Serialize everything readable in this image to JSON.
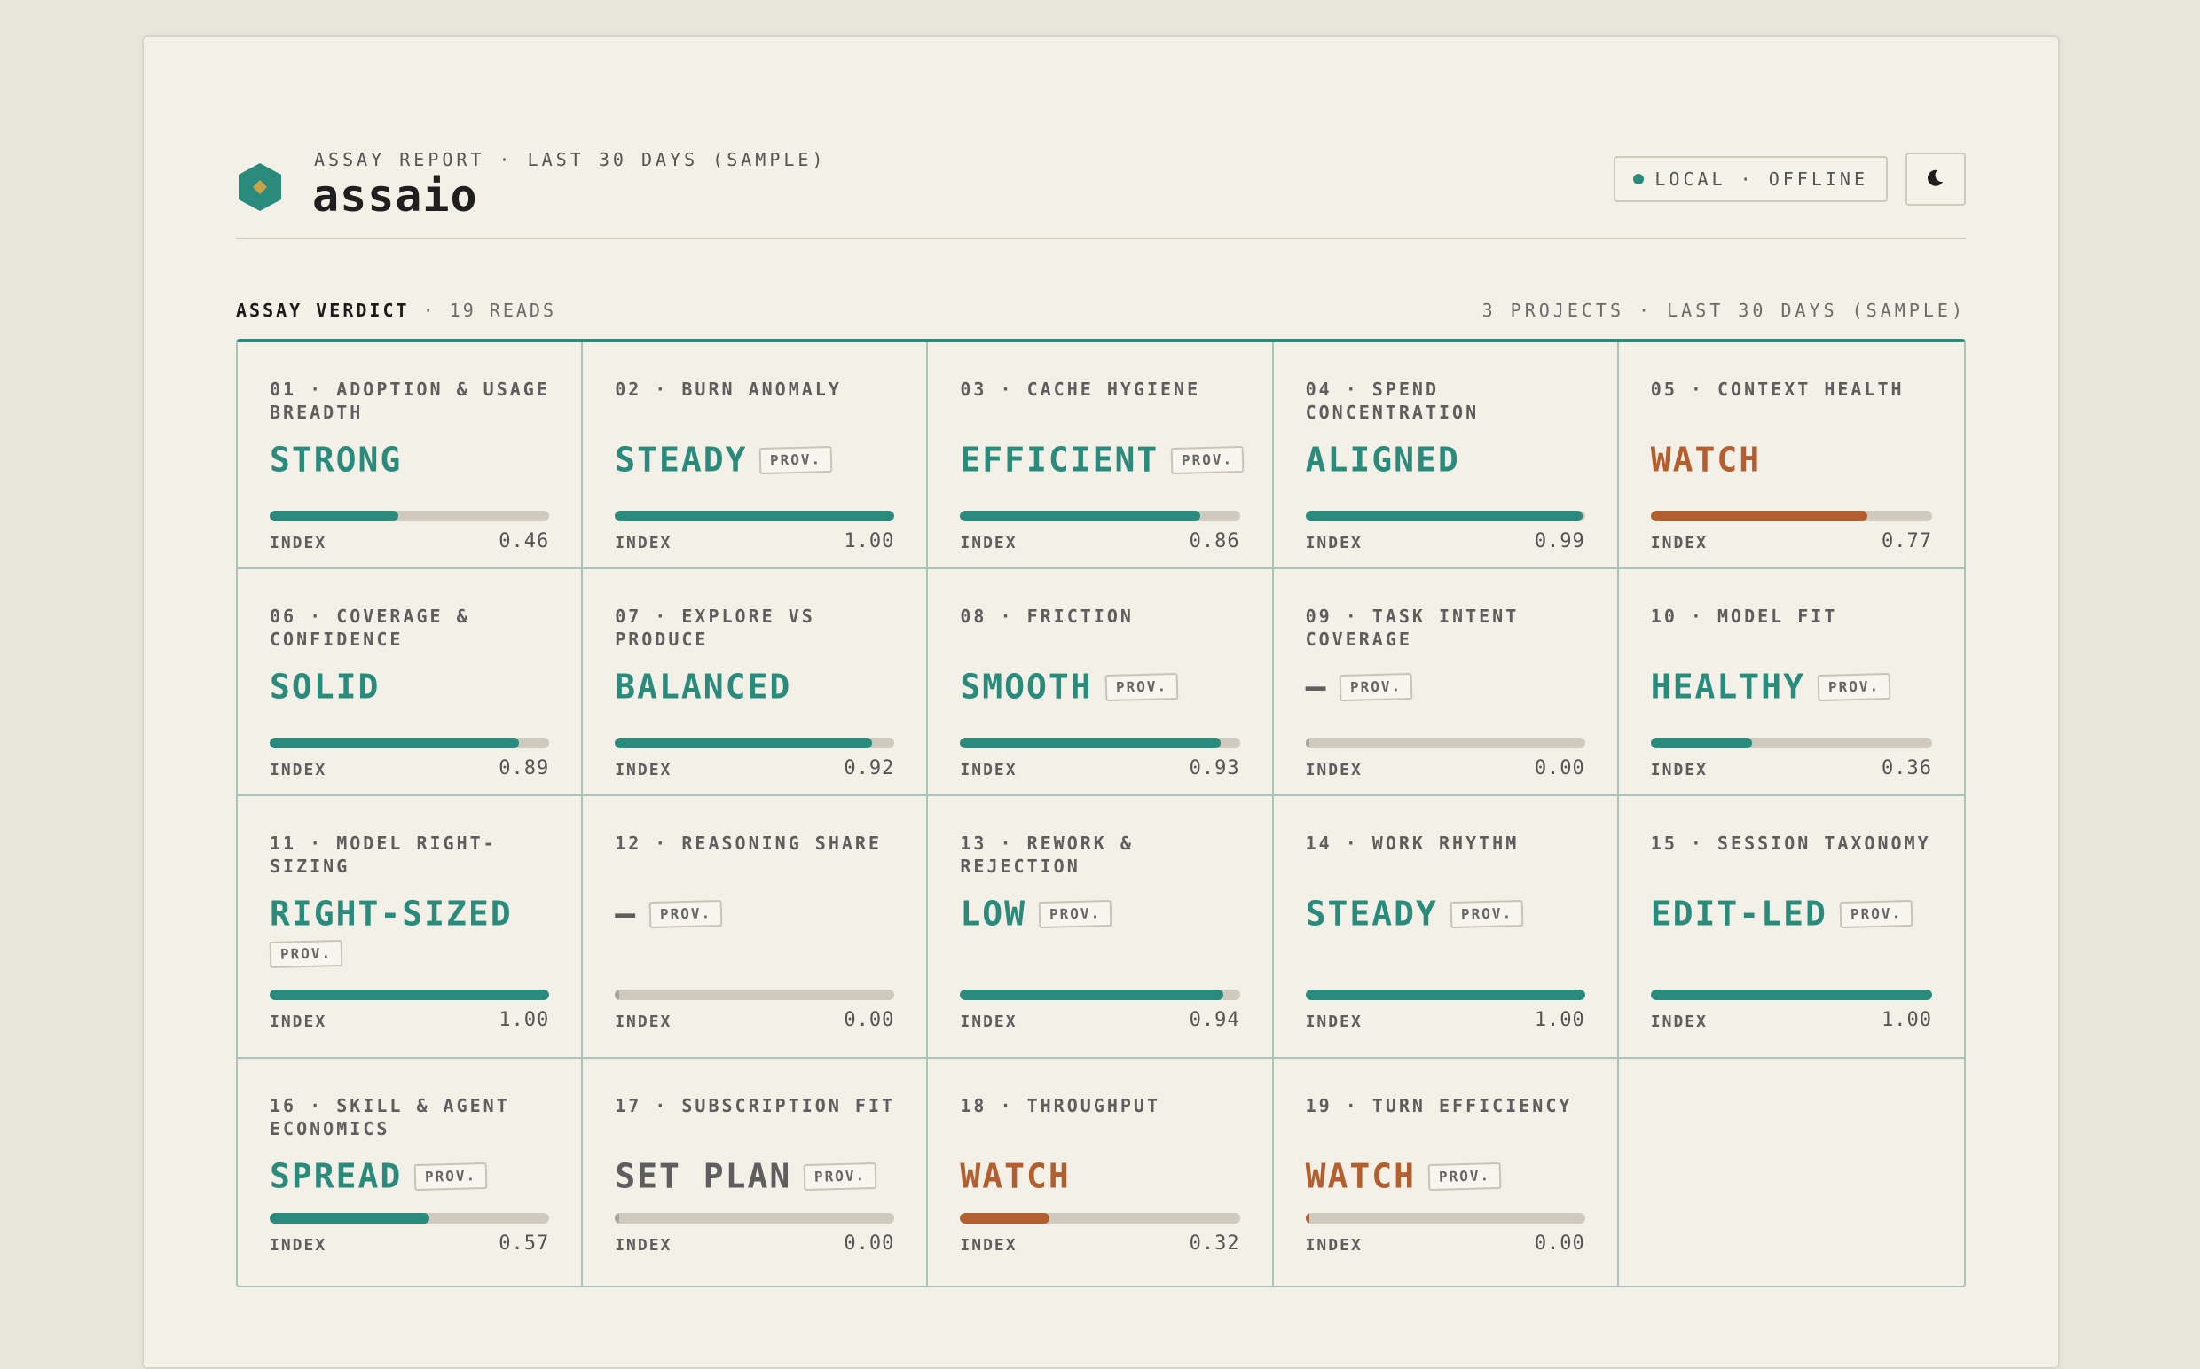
{
  "header": {
    "eyebrow": "ASSAY REPORT · LAST 30 DAYS (SAMPLE)",
    "title": "assaio",
    "status": "LOCAL · OFFLINE",
    "logo_icon": "hexagon-logo",
    "theme_icon": "moon-icon"
  },
  "colors": {
    "good": "#2a8a7c",
    "warn": "#b25e2e",
    "neutral": "#5e5e5e"
  },
  "section": {
    "title": "ASSAY VERDICT",
    "subtitle": " · 19 READS",
    "meta": "3 PROJECTS · LAST 30 DAYS (SAMPLE)"
  },
  "index_label": "INDEX",
  "prov_label": "PROV.",
  "cards": [
    {
      "label": "01 · ADOPTION & USAGE BREADTH",
      "verdict": "STRONG",
      "tone": "good",
      "prov": false,
      "index": 0.46,
      "index_text": "0.46"
    },
    {
      "label": "02 · BURN ANOMALY",
      "verdict": "STEADY",
      "tone": "good",
      "prov": true,
      "index": 1.0,
      "index_text": "1.00"
    },
    {
      "label": "03 · CACHE HYGIENE",
      "verdict": "EFFICIENT",
      "tone": "good",
      "prov": true,
      "index": 0.86,
      "index_text": "0.86"
    },
    {
      "label": "04 · SPEND CONCENTRATION",
      "verdict": "ALIGNED",
      "tone": "good",
      "prov": false,
      "index": 0.99,
      "index_text": "0.99"
    },
    {
      "label": "05 · CONTEXT HEALTH",
      "verdict": "WATCH",
      "tone": "warn",
      "prov": false,
      "index": 0.77,
      "index_text": "0.77"
    },
    {
      "label": "06 · COVERAGE & CONFIDENCE",
      "verdict": "SOLID",
      "tone": "good",
      "prov": false,
      "index": 0.89,
      "index_text": "0.89"
    },
    {
      "label": "07 · EXPLORE VS PRODUCE",
      "verdict": "BALANCED",
      "tone": "good",
      "prov": false,
      "index": 0.92,
      "index_text": "0.92"
    },
    {
      "label": "08 · FRICTION",
      "verdict": "SMOOTH",
      "tone": "good",
      "prov": true,
      "index": 0.93,
      "index_text": "0.93"
    },
    {
      "label": "09 · TASK INTENT COVERAGE",
      "verdict": "—",
      "tone": "neutral",
      "prov": true,
      "index": 0.0,
      "index_text": "0.00"
    },
    {
      "label": "10 · MODEL FIT",
      "verdict": "HEALTHY",
      "tone": "good",
      "prov": true,
      "index": 0.36,
      "index_text": "0.36"
    },
    {
      "label": "11 · MODEL RIGHT-SIZING",
      "verdict": "RIGHT-SIZED",
      "tone": "good",
      "prov": true,
      "prov_block": true,
      "index": 1.0,
      "index_text": "1.00"
    },
    {
      "label": "12 · REASONING SHARE",
      "verdict": "—",
      "tone": "neutral",
      "prov": true,
      "index": 0.0,
      "index_text": "0.00"
    },
    {
      "label": "13 · REWORK & REJECTION",
      "verdict": "LOW",
      "tone": "good",
      "prov": true,
      "index": 0.94,
      "index_text": "0.94"
    },
    {
      "label": "14 · WORK RHYTHM",
      "verdict": "STEADY",
      "tone": "good",
      "prov": true,
      "index": 1.0,
      "index_text": "1.00"
    },
    {
      "label": "15 · SESSION TAXONOMY",
      "verdict": "EDIT-LED",
      "tone": "good",
      "prov": true,
      "index": 1.0,
      "index_text": "1.00"
    },
    {
      "label": "16 · SKILL & AGENT ECONOMICS",
      "verdict": "SPREAD",
      "tone": "good",
      "prov": true,
      "index": 0.57,
      "index_text": "0.57"
    },
    {
      "label": "17 · SUBSCRIPTION FIT",
      "verdict": "SET PLAN",
      "tone": "neutral",
      "prov": true,
      "index": 0.0,
      "index_text": "0.00"
    },
    {
      "label": "18 · THROUGHPUT",
      "verdict": "WATCH",
      "tone": "warn",
      "prov": false,
      "index": 0.32,
      "index_text": "0.32"
    },
    {
      "label": "19 · TURN EFFICIENCY",
      "verdict": "WATCH",
      "tone": "warn",
      "prov": true,
      "index": 0.0,
      "index_text": "0.00"
    }
  ]
}
